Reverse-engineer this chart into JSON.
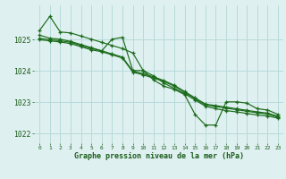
{
  "bg_color": "#dff0f0",
  "grid_color": "#b8dada",
  "line_color": "#1a6b1a",
  "tick_color": "#1a5c1a",
  "xlabel": "Graphe pression niveau de la mer (hPa)",
  "xlabel_color": "#1a5c1a",
  "ylim": [
    1021.7,
    1026.1
  ],
  "xlim": [
    -0.5,
    23.5
  ],
  "yticks": [
    1022,
    1023,
    1024,
    1025
  ],
  "xticks": [
    0,
    1,
    2,
    3,
    4,
    5,
    6,
    7,
    8,
    9,
    10,
    11,
    12,
    13,
    14,
    15,
    16,
    17,
    18,
    19,
    20,
    21,
    22,
    23
  ],
  "s1": [
    1025.3,
    1025.75,
    1025.25,
    1025.22,
    1025.12,
    1025.02,
    1024.92,
    1024.82,
    1024.72,
    1024.58,
    1024.02,
    1023.85,
    1023.62,
    1023.45,
    1023.28,
    1023.08,
    1022.88,
    1022.8,
    1022.74,
    1022.7,
    1022.65,
    1022.6,
    1022.57,
    1022.5
  ],
  "s2": [
    1025.15,
    1025.05,
    1025.02,
    1024.95,
    1024.85,
    1024.75,
    1024.65,
    1025.02,
    1025.08,
    1024.02,
    1024.02,
    1023.72,
    1023.52,
    1023.42,
    1023.25,
    1022.62,
    1022.28,
    1022.28,
    1023.02,
    1023.02,
    1022.98,
    1022.8,
    1022.76,
    1022.62
  ],
  "s3": [
    1025.05,
    1025.0,
    1024.97,
    1024.92,
    1024.82,
    1024.72,
    1024.65,
    1024.55,
    1024.45,
    1024.0,
    1023.92,
    1023.82,
    1023.7,
    1023.55,
    1023.35,
    1023.15,
    1022.95,
    1022.9,
    1022.85,
    1022.8,
    1022.75,
    1022.7,
    1022.66,
    1022.56
  ],
  "s4": [
    1025.0,
    1024.97,
    1024.93,
    1024.88,
    1024.78,
    1024.68,
    1024.62,
    1024.52,
    1024.42,
    1023.97,
    1023.88,
    1023.78,
    1023.67,
    1023.52,
    1023.32,
    1023.12,
    1022.92,
    1022.87,
    1022.82,
    1022.77,
    1022.72,
    1022.67,
    1022.63,
    1022.53
  ]
}
